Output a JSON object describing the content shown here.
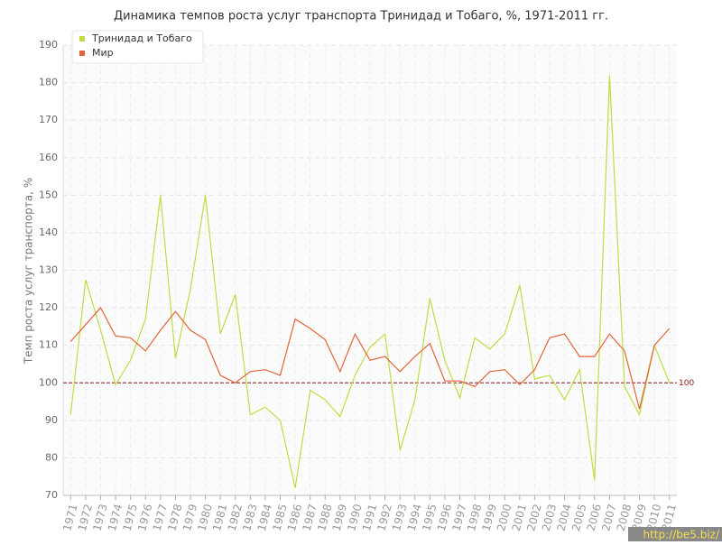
{
  "chart_data": {
    "type": "line",
    "title": "Динамика темпов роста услуг транспорта Тринидад и Тобаго, %, 1971-2011 гг.",
    "y_label": "Темп роста услуг транспорта, %",
    "categories": [
      "1971",
      "1972",
      "1973",
      "1974",
      "1975",
      "1976",
      "1977",
      "1978",
      "1979",
      "1980",
      "1981",
      "1982",
      "1983",
      "1984",
      "1985",
      "1986",
      "1987",
      "1988",
      "1989",
      "1990",
      "1991",
      "1992",
      "1993",
      "1994",
      "1995",
      "1996",
      "1997",
      "1998",
      "1999",
      "2000",
      "2001",
      "2002",
      "2003",
      "2004",
      "2005",
      "2006",
      "2007",
      "2008",
      "2009",
      "2010",
      "2011"
    ],
    "series": [
      {
        "name": "Тринидад и Тобаго",
        "color": "#bfdc45",
        "values": [
          91.5,
          127.5,
          114,
          99.5,
          106,
          117,
          150,
          106.5,
          125,
          150,
          113,
          123.5,
          91.5,
          93.5,
          90,
          72,
          98,
          95.5,
          91,
          102,
          109.5,
          113,
          82,
          95.5,
          122.5,
          106,
          96,
          112,
          109,
          113,
          126,
          101,
          102,
          95.5,
          103.5,
          74,
          182,
          99,
          91.5,
          110,
          100
        ]
      },
      {
        "name": "Мир",
        "color": "#e0653a",
        "values": [
          111,
          115.5,
          120,
          112.5,
          112,
          108.5,
          114,
          119,
          114,
          111.5,
          102,
          100,
          103,
          103.5,
          102,
          117,
          114.5,
          111.5,
          103,
          113,
          106,
          107,
          103,
          107,
          110.5,
          100.5,
          100.5,
          99,
          103,
          103.5,
          99.5,
          103.5,
          112,
          113,
          107,
          107,
          113,
          108.5,
          93,
          110,
          114.5
        ]
      }
    ],
    "ylim": [
      70,
      190
    ],
    "yticks": [
      70,
      80,
      90,
      100,
      110,
      120,
      130,
      140,
      150,
      160,
      170,
      180,
      190
    ],
    "grid": true,
    "legend": "top-left",
    "reference_line": {
      "value": 100,
      "label": "100",
      "color": "#8b1a1a"
    },
    "watermark": "http://be5.biz/"
  }
}
